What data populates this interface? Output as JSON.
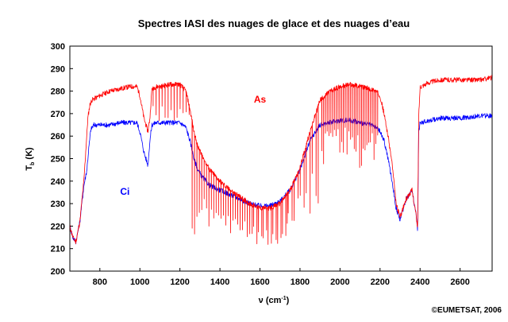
{
  "chart_data": {
    "type": "line",
    "title": "Spectres IASI des nuages de glace et des nuages d’eau",
    "xlabel_main": "ν (cm",
    "xlabel_sup": "-1",
    "xlabel_end": ")",
    "ylabel_main": "T",
    "ylabel_sub": "b",
    "ylabel_end": " (K)",
    "xlim": [
      650,
      2760
    ],
    "ylim": [
      200,
      300
    ],
    "xticks": [
      800,
      1000,
      1200,
      1400,
      1600,
      1800,
      2000,
      2200,
      2400,
      2600
    ],
    "yticks": [
      200,
      210,
      220,
      230,
      240,
      250,
      260,
      270,
      280,
      290,
      300
    ],
    "grid": false,
    "series": [
      {
        "name": "As",
        "color": "#ff0000",
        "x": [
          650,
          665,
          680,
          700,
          720,
          740,
          750,
          760,
          780,
          800,
          850,
          900,
          950,
          985,
          1000,
          1020,
          1040,
          1050,
          1060,
          1080,
          1100,
          1150,
          1200,
          1230,
          1250,
          1270,
          1290,
          1310,
          1330,
          1350,
          1400,
          1450,
          1500,
          1550,
          1600,
          1650,
          1700,
          1750,
          1800,
          1850,
          1900,
          1950,
          2000,
          2050,
          2100,
          2150,
          2180,
          2200,
          2220,
          2240,
          2260,
          2280,
          2300,
          2330,
          2360,
          2380,
          2388,
          2393,
          2400,
          2450,
          2500,
          2600,
          2700,
          2760
        ],
        "y": [
          220,
          215,
          213,
          222,
          240,
          268,
          274,
          276,
          277,
          278,
          280,
          281,
          282,
          282,
          278,
          268,
          262,
          268,
          281,
          282,
          282,
          283,
          283,
          280,
          272,
          262,
          255,
          252,
          248,
          245,
          240,
          236,
          233,
          230,
          228,
          228,
          230,
          236,
          246,
          262,
          276,
          280,
          282,
          283,
          282,
          281,
          280,
          278,
          270,
          260,
          248,
          230,
          224,
          232,
          236,
          225,
          218,
          268,
          282,
          284,
          285,
          285,
          285,
          286
        ],
        "dips": [
          [
            1060,
            1250,
            15,
            266
          ],
          [
            1250,
            1560,
            12,
            215
          ],
          [
            1560,
            1740,
            8,
            211
          ],
          [
            1740,
            1900,
            10,
            222
          ],
          [
            1900,
            2190,
            9,
            246
          ]
        ]
      },
      {
        "name": "Ci",
        "color": "#0000ff",
        "x": [
          650,
          665,
          680,
          700,
          720,
          735,
          745,
          755,
          770,
          800,
          850,
          900,
          950,
          985,
          1000,
          1020,
          1040,
          1050,
          1060,
          1080,
          1100,
          1150,
          1200,
          1230,
          1250,
          1270,
          1290,
          1310,
          1330,
          1350,
          1400,
          1450,
          1500,
          1550,
          1600,
          1650,
          1700,
          1750,
          1800,
          1850,
          1900,
          1950,
          2000,
          2050,
          2100,
          2150,
          2180,
          2200,
          2220,
          2240,
          2260,
          2280,
          2300,
          2330,
          2360,
          2380,
          2388,
          2393,
          2400,
          2450,
          2500,
          2600,
          2700,
          2760
        ],
        "y": [
          220,
          215,
          213,
          222,
          238,
          245,
          255,
          263,
          265,
          265,
          265,
          266,
          266,
          266,
          262,
          253,
          247,
          258,
          265,
          266,
          266,
          266,
          266,
          264,
          258,
          250,
          245,
          242,
          240,
          238,
          236,
          234,
          232,
          230,
          229,
          229,
          231,
          236,
          245,
          258,
          265,
          266,
          267,
          267,
          266,
          265,
          264,
          262,
          258,
          250,
          240,
          228,
          223,
          232,
          236,
          225,
          218,
          262,
          266,
          267,
          268,
          268,
          269,
          269
        ],
        "dips": []
      }
    ],
    "annotations": [
      {
        "text": "As",
        "x": 1600,
        "y": 275,
        "color": "#ff0000"
      },
      {
        "text": "Ci",
        "x": 925,
        "y": 234,
        "color": "#0000ff"
      }
    ]
  },
  "copyright": "©EUMETSAT, 2006"
}
